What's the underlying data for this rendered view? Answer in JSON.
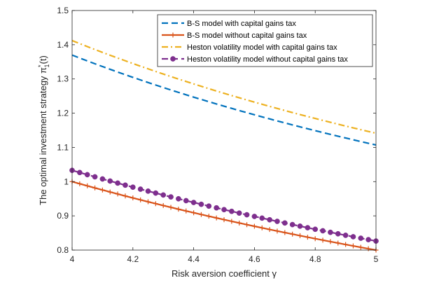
{
  "chart_data": {
    "type": "line",
    "title": "",
    "xlabel": "Risk aversion coefficient γ",
    "ylabel": "The optimal investment strategy π",
    "ylabel_sub": "1",
    "ylabel_sup": "*",
    "ylabel_suffix": "(t)",
    "xlim": [
      4,
      5
    ],
    "ylim": [
      0.8,
      1.5
    ],
    "x_ticks": [
      4,
      4.2,
      4.4,
      4.6,
      4.8,
      5
    ],
    "x_tick_labels": [
      "4",
      "4.2",
      "4.4",
      "4.6",
      "4.8",
      "5"
    ],
    "y_ticks": [
      0.8,
      0.9,
      1,
      1.1,
      1.2,
      1.3,
      1.4,
      1.5
    ],
    "y_tick_labels": [
      "0.8",
      "0.9",
      "1",
      "1.1",
      "1.2",
      "1.3",
      "1.4",
      "1.5"
    ],
    "legend_position": "top-right",
    "x": [
      4,
      4.025,
      4.05,
      4.075,
      4.1,
      4.125,
      4.15,
      4.175,
      4.2,
      4.225,
      4.25,
      4.275,
      4.3,
      4.325,
      4.35,
      4.375,
      4.4,
      4.425,
      4.45,
      4.475,
      4.5,
      4.525,
      4.55,
      4.575,
      4.6,
      4.625,
      4.65,
      4.675,
      4.7,
      4.725,
      4.75,
      4.775,
      4.8,
      4.825,
      4.85,
      4.875,
      4.9,
      4.925,
      4.95,
      4.975,
      5
    ],
    "series": [
      {
        "name": "B-S model with capital gains tax",
        "color": "#0072BD",
        "dash": "dash",
        "marker": "none",
        "values": [
          1.3697,
          1.3611,
          1.3527,
          1.3444,
          1.3362,
          1.3282,
          1.3202,
          1.3124,
          1.3047,
          1.2971,
          1.2896,
          1.2823,
          1.275,
          1.2678,
          1.2608,
          1.2538,
          1.2469,
          1.2402,
          1.2335,
          1.2269,
          1.2204,
          1.214,
          1.2077,
          1.2015,
          1.1953,
          1.1893,
          1.1833,
          1.1774,
          1.1715,
          1.1658,
          1.1601,
          1.1545,
          1.149,
          1.1435,
          1.1381,
          1.1328,
          1.1275,
          1.1223,
          1.1172,
          1.1121,
          1.1071
        ]
      },
      {
        "name": "B-S model without capital gains tax",
        "color": "#D95319",
        "dash": "solid",
        "marker": "plus",
        "values": [
          1.0,
          0.9938,
          0.9877,
          0.9816,
          0.9756,
          0.9697,
          0.9639,
          0.9581,
          0.9524,
          0.9467,
          0.9412,
          0.9357,
          0.9302,
          0.9249,
          0.9195,
          0.9143,
          0.9091,
          0.904,
          0.8989,
          0.8939,
          0.8889,
          0.884,
          0.8791,
          0.8743,
          0.8696,
          0.8649,
          0.8602,
          0.8556,
          0.8511,
          0.8466,
          0.8421,
          0.8377,
          0.8333,
          0.829,
          0.8247,
          0.8205,
          0.8163,
          0.8122,
          0.8081,
          0.804,
          0.8
        ]
      },
      {
        "name": "Heston volatility model with capital gains tax",
        "color": "#EDB120",
        "dash": "dashdot",
        "marker": "none",
        "values": [
          1.4121,
          1.4033,
          1.3946,
          1.386,
          1.3776,
          1.3693,
          1.3611,
          1.3531,
          1.3451,
          1.3373,
          1.3296,
          1.3219,
          1.3144,
          1.307,
          1.2998,
          1.2926,
          1.2855,
          1.2785,
          1.2716,
          1.2648,
          1.2581,
          1.2515,
          1.2451,
          1.2386,
          1.2323,
          1.2261,
          1.2199,
          1.2138,
          1.2078,
          1.2019,
          1.196,
          1.1903,
          1.1846,
          1.1789,
          1.1734,
          1.1679,
          1.1625,
          1.1571,
          1.1518,
          1.1466,
          1.1414
        ]
      },
      {
        "name": "Heston volatility model without capital gains tax",
        "color": "#7E2F8E",
        "dash": "dash",
        "marker": "circle",
        "values": [
          1.033,
          1.0266,
          1.0203,
          1.014,
          1.0078,
          1.0017,
          0.9957,
          0.9897,
          0.9838,
          0.978,
          0.9722,
          0.9666,
          0.9609,
          0.9554,
          0.9499,
          0.9444,
          0.9391,
          0.9338,
          0.9285,
          0.9234,
          0.9182,
          0.9132,
          0.9081,
          0.9032,
          0.8983,
          0.8934,
          0.8886,
          0.8839,
          0.8792,
          0.8745,
          0.8699,
          0.8653,
          0.8608,
          0.8564,
          0.8519,
          0.8476,
          0.8432,
          0.839,
          0.8347,
          0.8305,
          0.8264
        ]
      }
    ]
  }
}
